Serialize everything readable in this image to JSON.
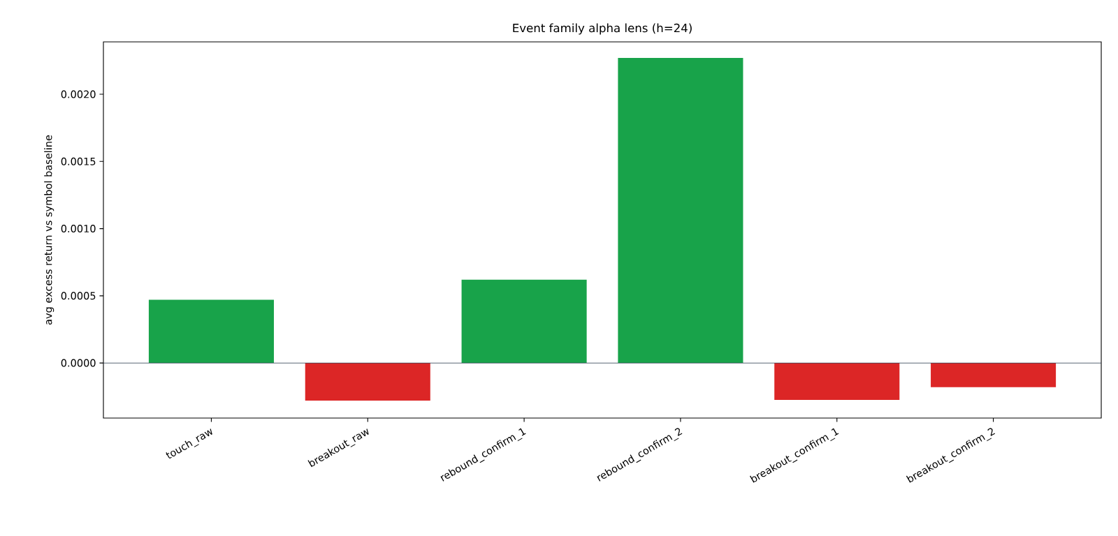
{
  "chart_data": {
    "type": "bar",
    "title": "Event family alpha lens (h=24)",
    "ylabel": "avg excess return vs symbol baseline",
    "categories": [
      "touch_raw",
      "breakout_raw",
      "rebound_confirm_1",
      "rebound_confirm_2",
      "breakout_confirm_1",
      "breakout_confirm_2"
    ],
    "values": [
      0.00047,
      -0.00028,
      0.00062,
      0.00227,
      -0.000275,
      -0.00018
    ],
    "colors": [
      "#18a34a",
      "#dc2626",
      "#18a34a",
      "#18a34a",
      "#dc2626",
      "#dc2626"
    ],
    "ylim": [
      -0.00041,
      0.00239
    ],
    "yticks": [
      {
        "value": 0,
        "label": "0.0000"
      },
      {
        "value": 0.0005,
        "label": "0.0005"
      },
      {
        "value": 0.001,
        "label": "0.0010"
      },
      {
        "value": 0.0015,
        "label": "0.0015"
      },
      {
        "value": 0.002,
        "label": "0.0020"
      }
    ],
    "ref_lines": [
      {
        "axis": "y",
        "value": 0,
        "color": "#334155"
      }
    ],
    "grid": false
  }
}
